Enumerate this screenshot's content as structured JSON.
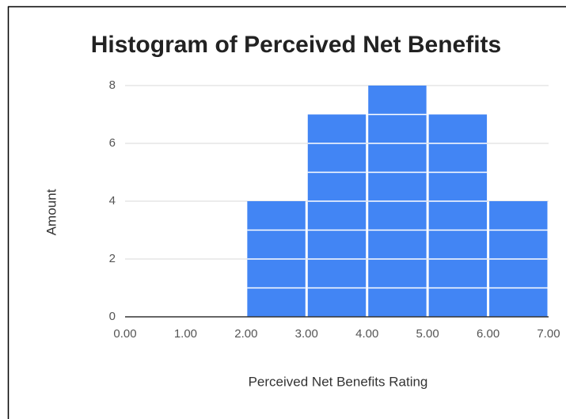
{
  "chart_data": {
    "type": "histogram",
    "title": "Histogram of Perceived Net Benefits",
    "x_label": "Perceived Net Benefits Rating",
    "y_label": "Amount",
    "bins": [
      0,
      1,
      2,
      3,
      4,
      5,
      6,
      7
    ],
    "values": [
      0,
      0,
      4,
      7,
      8,
      7,
      4
    ],
    "color": "#4285f4",
    "xlim": [
      0,
      7
    ],
    "xticks": [
      {
        "value": 0,
        "label": "0.00"
      },
      {
        "value": 1,
        "label": "1.00"
      },
      {
        "value": 2,
        "label": "2.00"
      },
      {
        "value": 3,
        "label": "3.00"
      },
      {
        "value": 4,
        "label": "4.00"
      },
      {
        "value": 5,
        "label": "5.00"
      },
      {
        "value": 6,
        "label": "6.00"
      },
      {
        "value": 7,
        "label": "7.00"
      }
    ],
    "ylim": [
      0,
      8
    ],
    "yticks": [
      0,
      2,
      4,
      6,
      8
    ],
    "grid": true
  }
}
